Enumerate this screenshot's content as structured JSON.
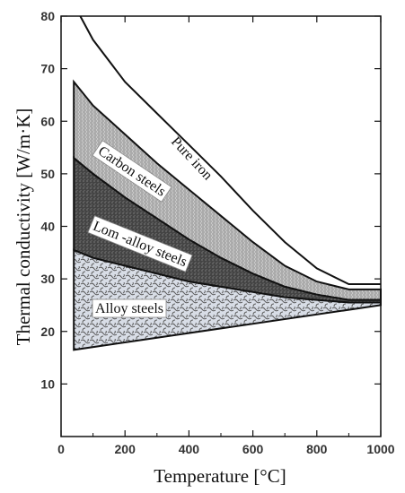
{
  "chart_data": {
    "type": "area",
    "xlabel": "Temperature [°C]",
    "ylabel": "Thermal conductivity [W/m·K]",
    "xlim": [
      0,
      1000
    ],
    "ylim": [
      0,
      80
    ],
    "x_ticks": [
      0,
      200,
      400,
      600,
      800,
      1000
    ],
    "y_ticks": [
      10,
      20,
      30,
      40,
      50,
      60,
      70,
      80
    ],
    "grid": false,
    "pure_iron": {
      "label": "Pure iron",
      "x": [
        60,
        100,
        200,
        300,
        400,
        500,
        600,
        700,
        800,
        900,
        1000
      ],
      "y": [
        80,
        75.5,
        67.5,
        61.5,
        55.5,
        49.5,
        43,
        37,
        32,
        29,
        29
      ]
    },
    "bands": [
      {
        "label": "Carbon steels",
        "upper": {
          "x": [
            40,
            100,
            200,
            300,
            400,
            500,
            600,
            700,
            800,
            900,
            1000
          ],
          "y": [
            67.5,
            63,
            57.5,
            52,
            47,
            42,
            37,
            32.5,
            29.5,
            28,
            28
          ]
        },
        "lower": {
          "x": [
            40,
            100,
            200,
            300,
            400,
            500,
            600,
            700,
            800,
            900,
            1000
          ],
          "y": [
            53,
            50,
            45.5,
            41.5,
            37.5,
            34,
            31,
            28.5,
            27,
            26,
            26
          ]
        },
        "color": "#c4c4c4"
      },
      {
        "label": "Lom -alloy steels",
        "upper": {
          "x": [
            40,
            100,
            200,
            300,
            400,
            500,
            600,
            700,
            800,
            900,
            1000
          ],
          "y": [
            53,
            50,
            45.5,
            41.5,
            37.5,
            34,
            31,
            28.5,
            27,
            26,
            26
          ]
        },
        "lower": {
          "x": [
            40,
            100,
            200,
            300,
            400,
            500,
            600,
            700,
            800,
            900,
            1000
          ],
          "y": [
            35.5,
            34,
            32.5,
            31,
            29.5,
            28.5,
            27.5,
            26.5,
            26,
            25.5,
            25.5
          ]
        },
        "color": "#4e4e4e"
      },
      {
        "label": "Alloy steels",
        "upper": {
          "x": [
            40,
            100,
            200,
            300,
            400,
            500,
            600,
            700,
            800,
            900,
            1000
          ],
          "y": [
            35.5,
            34,
            32.5,
            31,
            29.5,
            28.5,
            27.5,
            26.5,
            26,
            25.5,
            25.5
          ]
        },
        "lower": {
          "x": [
            40,
            1000
          ],
          "y": [
            16.5,
            25
          ]
        },
        "color": "#d3d8e0"
      }
    ]
  }
}
